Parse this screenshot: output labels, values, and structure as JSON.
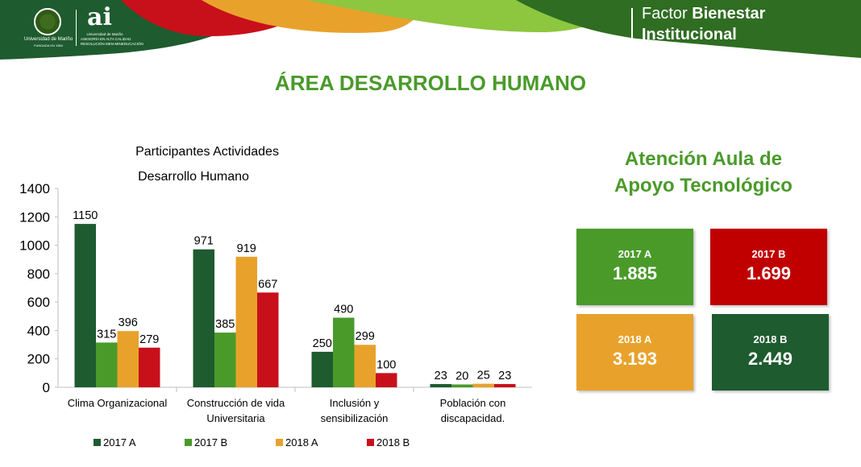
{
  "header": {
    "university_name": "Universidad de Mariño",
    "university_sub": "FUNDADA EN 1984",
    "ai_mark": "ai",
    "ai_caption_1": "Universidad de Mariño",
    "ai_caption_2": "ASESORÍA EN ALTA CALIDAD",
    "ai_caption_3": "RESOLUCIÓN MEN-MINEDUCACIÓN",
    "brand_line1_a": "Factor ",
    "brand_line1_b": "Bienestar",
    "brand_line2": "Institucional"
  },
  "page_title": "ÁREA DESARROLLO HUMANO",
  "colors": {
    "dark_green": "#1e5b2f",
    "green": "#4a9a2a",
    "orange": "#e8a22b",
    "red": "#c8101a"
  },
  "chart_data": {
    "type": "bar",
    "title_line1": "Participantes Actividades",
    "title_line2": "Desarrollo Humano",
    "categories": [
      [
        "Clima Organizacional"
      ],
      [
        "Construcción de vida",
        "Universitaria"
      ],
      [
        "Inclusión y",
        "sensibilización"
      ],
      [
        "Población con",
        "discapacidad."
      ]
    ],
    "series": [
      {
        "name": "2017 A",
        "color": "#1e5b2f",
        "values": [
          1150,
          971,
          250,
          23
        ]
      },
      {
        "name": "2017 B",
        "color": "#4a9a2a",
        "values": [
          315,
          385,
          490,
          20
        ]
      },
      {
        "name": "2018 A",
        "color": "#e8a22b",
        "values": [
          396,
          919,
          299,
          25
        ]
      },
      {
        "name": "2018 B",
        "color": "#c8101a",
        "values": [
          279,
          667,
          100,
          23
        ]
      }
    ],
    "ylim": [
      0,
      1400
    ],
    "yticks": [
      0,
      200,
      400,
      600,
      800,
      1000,
      1200,
      1400
    ],
    "grid": false,
    "legend": "bottom"
  },
  "panel": {
    "title_line1": "Atención Aula de",
    "title_line2": "Apoyo Tecnológico",
    "cards": [
      {
        "label": "2017 A",
        "value": "1.885",
        "color": "#4a9a2a"
      },
      {
        "label": "2017 B",
        "value": "1.699",
        "color": "#c00000"
      },
      {
        "label": "2018 A",
        "value": "3.193",
        "color": "#e8a22b"
      },
      {
        "label": "2018 B",
        "value": "2.449",
        "color": "#1e5b2f"
      }
    ]
  }
}
